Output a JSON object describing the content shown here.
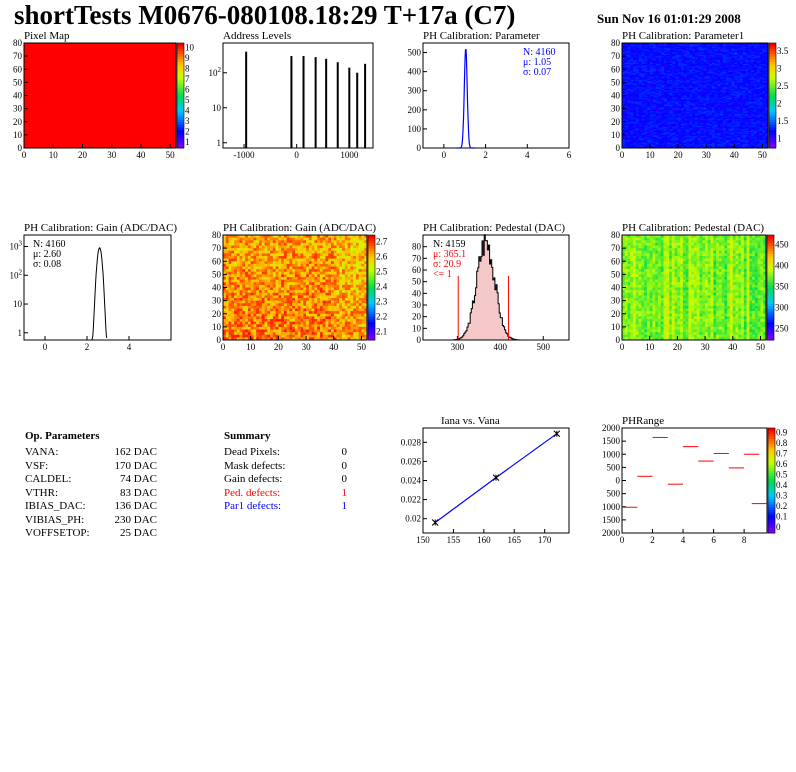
{
  "header": {
    "title": "shortTests M0676-080108.18:29 T+17a (C7)",
    "date": "Sun Nov 16 01:01:29 2008"
  },
  "op_parameters": {
    "title": "Op. Parameters",
    "rows": [
      {
        "name": "VANA:",
        "value": "162 DAC"
      },
      {
        "name": "VSF:",
        "value": "170 DAC"
      },
      {
        "name": "CALDEL:",
        "value": "74 DAC"
      },
      {
        "name": "VTHR:",
        "value": "83 DAC"
      },
      {
        "name": "IBIAS_DAC:",
        "value": "136 DAC"
      },
      {
        "name": "VIBIAS_PH:",
        "value": "230 DAC"
      },
      {
        "name": "VOFFSETOP:",
        "value": "25 DAC"
      }
    ]
  },
  "summary": {
    "title": "Summary",
    "rows": [
      {
        "name": "Dead Pixels:",
        "value": "0",
        "color": "#000000"
      },
      {
        "name": "Mask defects:",
        "value": "0",
        "color": "#000000"
      },
      {
        "name": "Gain defects:",
        "value": "0",
        "color": "#000000"
      },
      {
        "name": "Ped. defects:",
        "value": "1",
        "color": "#ff0000"
      },
      {
        "name": "Par1 defects:",
        "value": "1",
        "color": "#0000ff"
      }
    ]
  },
  "chart_data": [
    {
      "id": "pixel-map",
      "type": "heatmap",
      "title": "Pixel Map",
      "xlim": [
        0,
        52
      ],
      "ylim": [
        0,
        80
      ],
      "xticks": [
        "0",
        "10",
        "20",
        "30",
        "40",
        "50"
      ],
      "yticks": [
        "0",
        "10",
        "20",
        "30",
        "40",
        "50",
        "60",
        "70",
        "80"
      ],
      "fill_value": 10,
      "colorbar_ticks": [
        "1",
        "2",
        "3",
        "4",
        "5",
        "6",
        "7",
        "8",
        "9",
        "10"
      ]
    },
    {
      "id": "address-levels",
      "type": "bar",
      "title": "Address Levels",
      "log_y": true,
      "xticks": [
        "-1000",
        "0",
        "1000"
      ],
      "yticks": [
        "1",
        "10",
        "10^2"
      ],
      "peaks": [
        {
          "x": -960,
          "h": 400
        },
        {
          "x": -100,
          "h": 300
        },
        {
          "x": 130,
          "h": 300
        },
        {
          "x": 360,
          "h": 280
        },
        {
          "x": 560,
          "h": 250
        },
        {
          "x": 780,
          "h": 200
        },
        {
          "x": 1000,
          "h": 140
        },
        {
          "x": 1150,
          "h": 100
        },
        {
          "x": 1300,
          "h": 180
        }
      ]
    },
    {
      "id": "ph-cal-parameter",
      "type": "bar",
      "title": "PH Calibration: Parameter",
      "xlim": [
        -1,
        6
      ],
      "ylim": [
        0,
        550
      ],
      "xticks": [
        "0",
        "2",
        "4",
        "6"
      ],
      "yticks": [
        "0",
        "100",
        "200",
        "300",
        "400",
        "500"
      ],
      "stats": [
        "N: 4160",
        "μ: 1.05",
        "σ: 0.07"
      ],
      "stats_color": "#0000ff",
      "peak": {
        "x": 1.05,
        "h": 520,
        "sigma": 0.07
      }
    },
    {
      "id": "ph-cal-parameter1",
      "type": "heatmap",
      "title": "PH Calibration: Parameter1",
      "xlim": [
        0,
        52
      ],
      "ylim": [
        0,
        80
      ],
      "xticks": [
        "0",
        "10",
        "20",
        "30",
        "40",
        "50"
      ],
      "yticks": [
        "0",
        "10",
        "20",
        "30",
        "40",
        "50",
        "60",
        "70",
        "80"
      ],
      "colorbar_ticks": [
        "1",
        "1.5",
        "2",
        "2.5",
        "3",
        "3.5"
      ]
    },
    {
      "id": "ph-cal-gain-hist",
      "type": "bar",
      "title": "PH Calibration: Gain (ADC/DAC)",
      "log_y": true,
      "xlim": [
        -1,
        6
      ],
      "xticks": [
        "0",
        "2",
        "4"
      ],
      "yticks": [
        "1",
        "10",
        "10^2",
        "10^3"
      ],
      "stats": [
        "N: 4160",
        "μ: 2.60",
        "σ: 0.08"
      ],
      "stats_color": "#000000",
      "peak": {
        "x": 2.6,
        "h": 900,
        "sigma": 0.08
      }
    },
    {
      "id": "ph-cal-gain-map",
      "type": "heatmap",
      "title": "PH Calibration: Gain (ADC/DAC)",
      "xlim": [
        0,
        52
      ],
      "ylim": [
        0,
        80
      ],
      "xticks": [
        "0",
        "10",
        "20",
        "30",
        "40",
        "50"
      ],
      "yticks": [
        "0",
        "10",
        "20",
        "30",
        "40",
        "50",
        "60",
        "70",
        "80"
      ],
      "colorbar_ticks": [
        "2.1",
        "2.2",
        "2.3",
        "2.4",
        "2.5",
        "2.6",
        "2.7"
      ]
    },
    {
      "id": "ph-cal-pedestal-hist",
      "type": "bar",
      "title": "PH Calibration: Pedestal (DAC)",
      "xlim": [
        220,
        560
      ],
      "ylim": [
        0,
        90
      ],
      "xticks": [
        "300",
        "400",
        "500"
      ],
      "yticks": [
        "0",
        "10",
        "20",
        "30",
        "40",
        "50",
        "60",
        "70",
        "80"
      ],
      "stats": [
        "N: 4159"
      ],
      "stats_red": [
        "μ: 365.1",
        "σ: 20.9",
        "<= 1"
      ],
      "peak": {
        "x": 365.1,
        "h": 85,
        "sigma": 20.9
      },
      "red_lines": [
        302,
        419
      ]
    },
    {
      "id": "ph-cal-pedestal-map",
      "type": "heatmap",
      "title": "PH Calibration: Pedestal (DAC)",
      "xlim": [
        0,
        52
      ],
      "ylim": [
        0,
        80
      ],
      "xticks": [
        "0",
        "10",
        "20",
        "30",
        "40",
        "50"
      ],
      "yticks": [
        "0",
        "10",
        "20",
        "30",
        "40",
        "50",
        "60",
        "70",
        "80"
      ],
      "colorbar_ticks": [
        "250",
        "300",
        "350",
        "400",
        "450"
      ]
    },
    {
      "id": "iana-vs-vana",
      "type": "line",
      "title": "Iana vs. Vana",
      "xlim": [
        150,
        174
      ],
      "ylim": [
        0.0185,
        0.0295
      ],
      "xticks": [
        "150",
        "155",
        "160",
        "165",
        "170"
      ],
      "yticks": [
        "0.02",
        "0.022",
        "0.024",
        "0.026",
        "0.028"
      ],
      "x": [
        152,
        162,
        172
      ],
      "y": [
        0.0196,
        0.0243,
        0.0289
      ]
    },
    {
      "id": "ph-range",
      "type": "scatter",
      "title": "PHRange",
      "xlim": [
        0,
        9.5
      ],
      "ylim": [
        -2000,
        2000
      ],
      "xticks": [
        "0",
        "2",
        "4",
        "6",
        "8"
      ],
      "yticks": [
        "-2000",
        "-1500",
        "-1000",
        "-500",
        "0",
        "500",
        "1000",
        "1500",
        "2000"
      ],
      "ytick_text": [
        "2000",
        "1500",
        "1000",
        "500",
        "0",
        "500",
        "1000",
        "1500",
        "2000"
      ],
      "segments": [
        {
          "x": 0.5,
          "y": -1020
        },
        {
          "x": 1.5,
          "y": 160
        },
        {
          "x": 2.5,
          "y": 1640
        },
        {
          "x": 3.5,
          "y": -140
        },
        {
          "x": 4.5,
          "y": 1290
        },
        {
          "x": 5.5,
          "y": 740
        },
        {
          "x": 6.5,
          "y": 1030
        },
        {
          "x": 7.5,
          "y": 480
        },
        {
          "x": 8.5,
          "y": 1000
        },
        {
          "x": 9.0,
          "y": -880
        }
      ],
      "colorbar_ticks": [
        "0",
        "0.1",
        "0.2",
        "0.3",
        "0.4",
        "0.5",
        "0.6",
        "0.7",
        "0.8",
        "0.9"
      ]
    }
  ]
}
